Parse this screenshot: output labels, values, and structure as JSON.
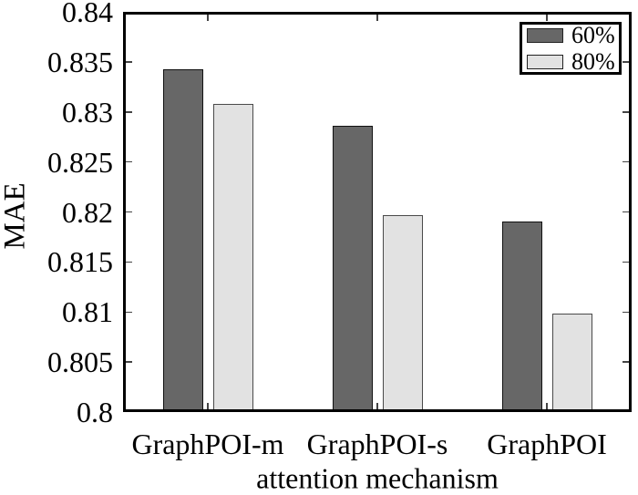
{
  "chart_data": {
    "type": "bar",
    "title": "",
    "xlabel": "attention mechanism",
    "ylabel": "MAE",
    "categories": [
      "GraphPOI-m",
      "GraphPOI-s",
      "GraphPOI"
    ],
    "series": [
      {
        "name": "60%",
        "color": "#676767",
        "border_color": "#111111",
        "values": [
          0.8343,
          0.8286,
          0.819
        ]
      },
      {
        "name": "80%",
        "color": "#e2e2e2",
        "border_color": "#4a4a4a",
        "values": [
          0.8308,
          0.8197,
          0.8098
        ]
      }
    ],
    "ylim": [
      0.8,
      0.84
    ],
    "yticks": [
      0.8,
      0.805,
      0.81,
      0.815,
      0.82,
      0.825,
      0.83,
      0.835,
      0.84
    ],
    "ytick_labels": [
      "0.8",
      "0.805",
      "0.81",
      "0.815",
      "0.82",
      "0.825",
      "0.83",
      "0.835",
      "0.84"
    ],
    "grid": false,
    "legend_position": "top-right",
    "axis_color": "#000000",
    "background_color": "#ffffff"
  }
}
